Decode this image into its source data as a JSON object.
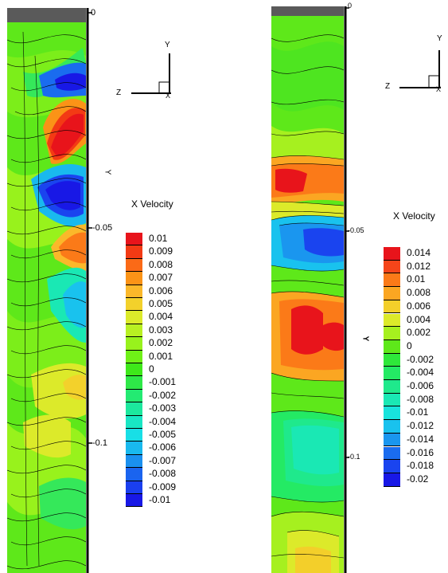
{
  "panels": [
    {
      "id": "left",
      "axis_ticks": [
        "0",
        "-0.05",
        "-0.1"
      ],
      "y_axis_label": "Y",
      "triad": {
        "x": "X",
        "y": "Y",
        "z": "Z"
      },
      "legend": {
        "title": "X Velocity",
        "levels": [
          "0.01",
          "0.009",
          "0.008",
          "0.007",
          "0.006",
          "0.005",
          "0.004",
          "0.003",
          "0.002",
          "0.001",
          "0",
          "-0.001",
          "-0.002",
          "-0.003",
          "-0.004",
          "-0.005",
          "-0.006",
          "-0.007",
          "-0.008",
          "-0.009",
          "-0.01"
        ],
        "colors": [
          "#e8141b",
          "#f33a14",
          "#fb6a17",
          "#fb9317",
          "#fbb82a",
          "#f3d12b",
          "#dcea2a",
          "#b8f022",
          "#98f21c",
          "#6ff017",
          "#3ee81a",
          "#2ee848",
          "#23ea72",
          "#1ce89e",
          "#19e6c4",
          "#18dfe6",
          "#19b9ee",
          "#1a90ef",
          "#1a64ef",
          "#1a3fef",
          "#1818e6"
        ]
      }
    },
    {
      "id": "right",
      "axis_ticks": [
        "0",
        "-0.05",
        "-0.1"
      ],
      "y_axis_label": "Y",
      "triad": {
        "x": "X",
        "y": "Y",
        "z": "Z"
      },
      "legend": {
        "title": "X Velocity",
        "levels": [
          "0.014",
          "0.012",
          "0.01",
          "0.008",
          "0.006",
          "0.004",
          "0.002",
          "0",
          "-0.002",
          "-0.004",
          "-0.006",
          "-0.008",
          "-0.01",
          "-0.012",
          "-0.014",
          "-0.016",
          "-0.018",
          "-0.02"
        ],
        "colors": [
          "#e8141b",
          "#f5451a",
          "#fb7a18",
          "#fba622",
          "#f3cf2a",
          "#dcea2a",
          "#a6f01f",
          "#5ee81a",
          "#2ee83a",
          "#24ea64",
          "#1fe98c",
          "#1ae8b4",
          "#18e3dc",
          "#19c2ee",
          "#1a96ef",
          "#1a6cef",
          "#1a44ef",
          "#1818e6"
        ]
      }
    }
  ],
  "chart_data": [
    {
      "type": "heatmap",
      "title": "",
      "colorbar_title": "X Velocity",
      "ylabel": "Y",
      "y_ticks": [
        0,
        -0.05,
        -0.1
      ],
      "ylim": [
        -0.155,
        0
      ],
      "color_levels": [
        0.01,
        0.009,
        0.008,
        0.007,
        0.006,
        0.005,
        0.004,
        0.003,
        0.002,
        0.001,
        0,
        -0.001,
        -0.002,
        -0.003,
        -0.004,
        -0.005,
        -0.006,
        -0.007,
        -0.008,
        -0.009,
        -0.01
      ],
      "features": [
        {
          "sign": "negative",
          "y": -0.02,
          "value": -0.009
        },
        {
          "sign": "positive",
          "y": -0.031,
          "value": 0.01
        },
        {
          "sign": "negative",
          "y": -0.04,
          "value": -0.01
        },
        {
          "sign": "positive",
          "y": -0.055,
          "value": 0.007
        },
        {
          "sign": "negative",
          "y": -0.07,
          "value": -0.006
        },
        {
          "sign": "positive",
          "y": -0.085,
          "value": 0.003
        },
        {
          "sign": "negative",
          "y": -0.095,
          "value": -0.004
        }
      ]
    },
    {
      "type": "heatmap",
      "title": "",
      "colorbar_title": "X Velocity",
      "ylabel": "Y",
      "y_ticks": [
        0,
        -0.05,
        -0.1
      ],
      "ylim": [
        -0.145,
        0
      ],
      "color_levels": [
        0.014,
        0.012,
        0.01,
        0.008,
        0.006,
        0.004,
        0.002,
        0,
        -0.002,
        -0.004,
        -0.006,
        -0.008,
        -0.01,
        -0.012,
        -0.014,
        -0.016,
        -0.018,
        -0.02
      ],
      "features": [
        {
          "sign": "positive",
          "y": -0.037,
          "value": 0.014
        },
        {
          "sign": "negative",
          "y": -0.052,
          "value": -0.018
        },
        {
          "sign": "positive",
          "y": -0.07,
          "value": 0.014
        },
        {
          "sign": "negative",
          "y": -0.102,
          "value": -0.01
        },
        {
          "sign": "positive",
          "y": -0.14,
          "value": 0.006
        }
      ]
    }
  ]
}
